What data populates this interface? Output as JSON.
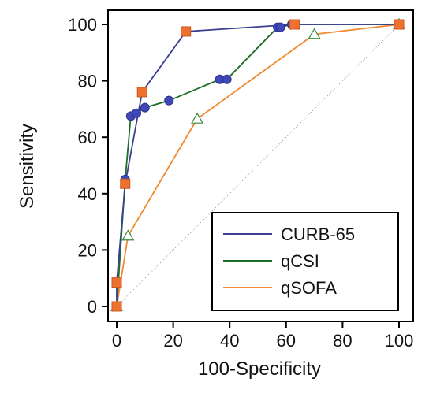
{
  "chart_data": {
    "type": "line",
    "xlabel": "100-Specificity",
    "ylabel": "Sensitivity",
    "xlim": [
      0,
      100
    ],
    "ylim": [
      0,
      100
    ],
    "xticks": [
      "0",
      "20",
      "40",
      "60",
      "80",
      "100"
    ],
    "yticks": [
      "0",
      "20",
      "40",
      "60",
      "80",
      "100"
    ],
    "reference_line": {
      "from": [
        0,
        0
      ],
      "to": [
        100,
        100
      ],
      "style": "dotted"
    },
    "legend_position": "bottom-right",
    "series": [
      {
        "name": "CURB-65",
        "color": "#3a3f8f",
        "marker": "square",
        "marker_color": "#f07030",
        "points": [
          [
            0,
            0
          ],
          [
            0,
            8.5
          ],
          [
            3,
            43.5
          ],
          [
            9,
            76
          ],
          [
            24.5,
            97.5
          ],
          [
            63,
            100
          ],
          [
            100,
            100
          ]
        ]
      },
      {
        "name": "qCSI",
        "color": "#1e6e26",
        "marker": "circle",
        "marker_color": "#3f48b8",
        "points": [
          [
            0,
            0
          ],
          [
            3,
            45
          ],
          [
            5,
            67.5
          ],
          [
            7,
            68.5
          ],
          [
            10,
            70.5
          ],
          [
            18.5,
            73
          ],
          [
            36.5,
            80.5
          ],
          [
            39,
            80.5
          ],
          [
            57,
            99
          ],
          [
            58,
            99
          ],
          [
            62,
            100
          ],
          [
            100,
            100
          ]
        ]
      },
      {
        "name": "qSOFA",
        "color": "#f08a30",
        "marker": "triangle",
        "marker_color": "#ffffff",
        "marker_edge": "#3a8a3a",
        "points": [
          [
            0,
            0
          ],
          [
            4,
            25
          ],
          [
            28.5,
            66.5
          ],
          [
            70,
            96.5
          ],
          [
            100,
            100
          ]
        ]
      }
    ]
  }
}
